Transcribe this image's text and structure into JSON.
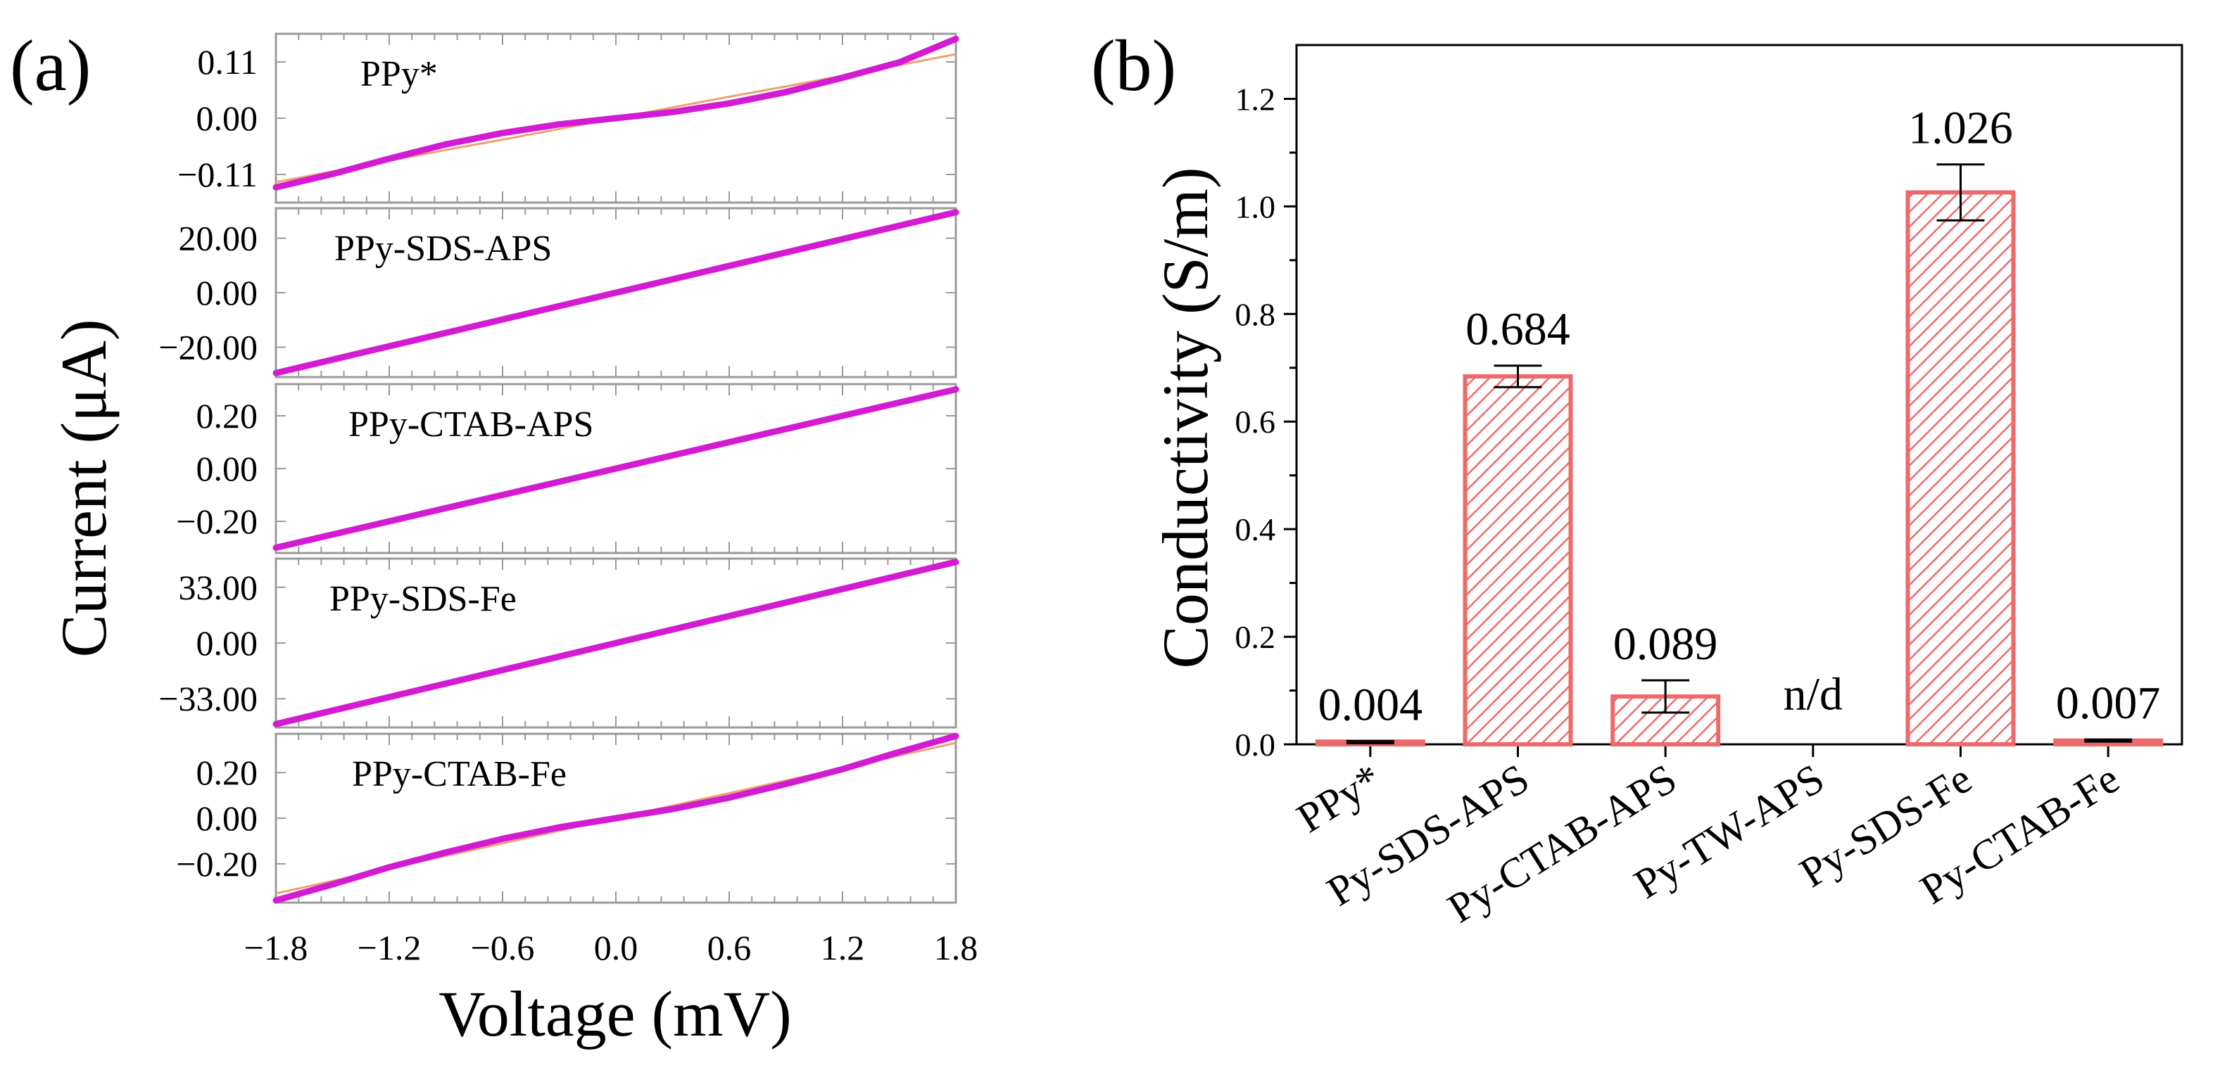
{
  "chart_data": [
    {
      "panel": "(a)",
      "type": "line",
      "xlabel": "Voltage (mV)",
      "ylabel": "Current (μA)",
      "xlim": [
        -1.8,
        1.8
      ],
      "x_ticks": [
        "−1.8",
        "−1.2",
        "−0.6",
        "0.0",
        "0.6",
        "1.2",
        "1.8"
      ],
      "x_tick_values": [
        -1.8,
        -1.2,
        -0.6,
        0.0,
        0.6,
        1.2,
        1.8
      ],
      "colors": {
        "curve": "#d21bd2",
        "fit": "#f0a070",
        "frame": "#9a9a9a"
      },
      "subplots": [
        {
          "label": "PPy*",
          "ylim": [
            -0.165,
            0.165
          ],
          "yticks": [
            "0.11",
            "0.00",
            "−0.11"
          ],
          "ytick_values": [
            0.11,
            0.0,
            -0.11
          ],
          "x": [
            -1.8,
            -1.5,
            -1.2,
            -0.9,
            -0.6,
            -0.3,
            0.0,
            0.3,
            0.6,
            0.9,
            1.2,
            1.5,
            1.8
          ],
          "curve": [
            -0.135,
            -0.109,
            -0.079,
            -0.051,
            -0.029,
            -0.012,
            0.0,
            0.012,
            0.029,
            0.051,
            0.079,
            0.109,
            0.155
          ],
          "fit": [
            -0.125,
            -0.104,
            -0.083,
            -0.062,
            -0.042,
            -0.021,
            0.0,
            0.021,
            0.042,
            0.062,
            0.083,
            0.104,
            0.125
          ]
        },
        {
          "label": "PPy-SDS-APS",
          "ylim": [
            -31,
            31
          ],
          "yticks": [
            "20.00",
            "0.00",
            "−20.00"
          ],
          "ytick_values": [
            20,
            0,
            -20
          ],
          "x": [
            -1.8,
            0.0,
            1.8
          ],
          "curve": [
            -29.5,
            0.0,
            29.5
          ],
          "fit": [
            -29.5,
            0.0,
            29.5
          ]
        },
        {
          "label": "PPy-CTAB-APS",
          "ylim": [
            -0.32,
            0.32
          ],
          "yticks": [
            "0.20",
            "0.00",
            "−0.20"
          ],
          "ytick_values": [
            0.2,
            0.0,
            -0.2
          ],
          "x": [
            -1.8,
            0.0,
            1.8
          ],
          "curve": [
            -0.3,
            0.0,
            0.3
          ],
          "fit": [
            -0.3,
            0.0,
            0.3
          ]
        },
        {
          "label": "PPy-SDS-Fe",
          "ylim": [
            -50,
            50
          ],
          "yticks": [
            "33.00",
            "0.00",
            "−33.00"
          ],
          "ytick_values": [
            33,
            0,
            -33
          ],
          "x": [
            -1.8,
            0.0,
            1.8
          ],
          "curve": [
            -48.0,
            0.0,
            48.0
          ],
          "fit": [
            -48.0,
            0.0,
            48.0
          ]
        },
        {
          "label": "PPy-CTAB-Fe",
          "ylim": [
            -0.37,
            0.37
          ],
          "yticks": [
            "0.20",
            "0.00",
            "−0.20"
          ],
          "ytick_values": [
            0.2,
            0.0,
            -0.2
          ],
          "x": [
            -1.8,
            -1.5,
            -1.2,
            -0.9,
            -0.6,
            -0.3,
            0.0,
            0.3,
            0.6,
            0.9,
            1.2,
            1.5,
            1.8
          ],
          "curve": [
            -0.36,
            -0.29,
            -0.215,
            -0.15,
            -0.09,
            -0.04,
            0.0,
            0.04,
            0.09,
            0.15,
            0.215,
            0.29,
            0.36
          ],
          "fit": [
            -0.33,
            -0.275,
            -0.22,
            -0.165,
            -0.11,
            -0.055,
            0.0,
            0.055,
            0.11,
            0.165,
            0.22,
            0.275,
            0.33
          ]
        }
      ]
    },
    {
      "panel": "(b)",
      "type": "bar",
      "ylabel": "Conductivity (S/m)",
      "xlabel": "",
      "ylim": [
        0,
        1.3
      ],
      "y_ticks": [
        "0.0",
        "0.2",
        "0.4",
        "0.6",
        "0.8",
        "1.0",
        "1.2"
      ],
      "y_tick_values": [
        0.0,
        0.2,
        0.4,
        0.6,
        0.8,
        1.0,
        1.2
      ],
      "categories": [
        "PPy*",
        "Py-SDS-APS",
        "Py-CTAB-APS",
        "Py-TW-APS",
        "Py-SDS-Fe",
        "Py-CTAB-Fe"
      ],
      "values": [
        0.004,
        0.684,
        0.089,
        null,
        1.026,
        0.007
      ],
      "errors": [
        0.002,
        0.02,
        0.03,
        null,
        0.052,
        0.002
      ],
      "value_labels": [
        "0.004",
        "0.684",
        "0.089",
        "n/d",
        "1.026",
        "0.007"
      ],
      "colors": {
        "bar_edge": "#ee6a6a",
        "hatch": "#ee6a6a",
        "bar_fill": "#ffffff",
        "frame": "#000000"
      },
      "hatch": "diagonal"
    }
  ]
}
